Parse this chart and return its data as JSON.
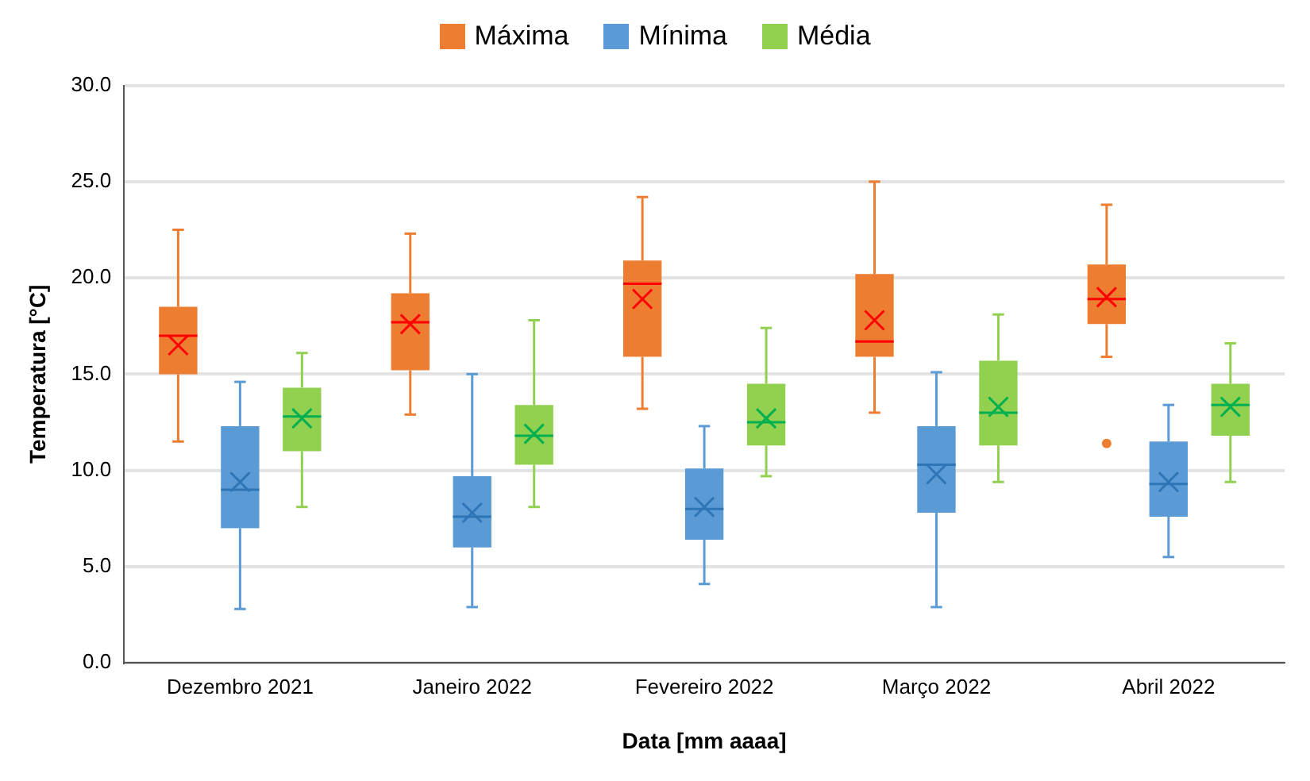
{
  "chart_data": {
    "type": "box",
    "xlabel": "Data [mm aaaa]",
    "ylabel": "Temperatura [°C]",
    "categories": [
      "Dezembro 2021",
      "Janeiro 2022",
      "Fevereiro 2022",
      "Março 2022",
      "Abril 2022"
    ],
    "series": [
      {
        "name": "Máxima",
        "color": "#ed7d31",
        "boxes": [
          {
            "low": 11.5,
            "q1": 15.0,
            "median": 17.0,
            "q3": 18.5,
            "high": 22.5,
            "mean": 16.5
          },
          {
            "low": 12.9,
            "q1": 15.2,
            "median": 17.7,
            "q3": 19.2,
            "high": 22.3,
            "mean": 17.6
          },
          {
            "low": 13.2,
            "q1": 15.9,
            "median": 19.7,
            "q3": 20.9,
            "high": 24.2,
            "mean": 18.9
          },
          {
            "low": 13.0,
            "q1": 15.9,
            "median": 16.7,
            "q3": 20.2,
            "high": 25.0,
            "mean": 17.8
          },
          {
            "low": 15.9,
            "q1": 17.6,
            "median": 18.9,
            "q3": 20.7,
            "high": 23.8,
            "mean": 19.0,
            "outliers": [
              11.4
            ]
          }
        ]
      },
      {
        "name": "Mínima",
        "color": "#5b9bd5",
        "boxes": [
          {
            "low": 2.8,
            "q1": 7.0,
            "median": 9.0,
            "q3": 12.3,
            "high": 14.6,
            "mean": 9.4
          },
          {
            "low": 2.9,
            "q1": 6.0,
            "median": 7.6,
            "q3": 9.7,
            "high": 15.0,
            "mean": 7.8
          },
          {
            "low": 4.1,
            "q1": 6.4,
            "median": 8.0,
            "q3": 10.1,
            "high": 12.3,
            "mean": 8.1
          },
          {
            "low": 2.9,
            "q1": 7.8,
            "median": 10.3,
            "q3": 12.3,
            "high": 15.1,
            "mean": 9.8
          },
          {
            "low": 5.5,
            "q1": 7.6,
            "median": 9.3,
            "q3": 11.5,
            "high": 13.4,
            "mean": 9.4
          }
        ]
      },
      {
        "name": "Média",
        "color": "#92d050",
        "boxes": [
          {
            "low": 8.1,
            "q1": 11.0,
            "median": 12.8,
            "q3": 14.3,
            "high": 16.1,
            "mean": 12.7
          },
          {
            "low": 8.1,
            "q1": 10.3,
            "median": 11.8,
            "q3": 13.4,
            "high": 17.8,
            "mean": 11.9
          },
          {
            "low": 9.7,
            "q1": 11.3,
            "median": 12.5,
            "q3": 14.5,
            "high": 17.4,
            "mean": 12.7
          },
          {
            "low": 9.4,
            "q1": 11.3,
            "median": 13.0,
            "q3": 15.7,
            "high": 18.1,
            "mean": 13.3
          },
          {
            "low": 9.4,
            "q1": 11.8,
            "median": 13.4,
            "q3": 14.5,
            "high": 16.6,
            "mean": 13.3
          }
        ]
      }
    ],
    "ylim": [
      0,
      30
    ],
    "yticks": [
      {
        "value": 0,
        "label": "0.0"
      },
      {
        "value": 5,
        "label": "5.0"
      },
      {
        "value": 10,
        "label": "10.0"
      },
      {
        "value": 15,
        "label": "15.0"
      },
      {
        "value": 20,
        "label": "20.0"
      },
      {
        "value": 25,
        "label": "25.0"
      },
      {
        "value": 30,
        "label": "30.0"
      }
    ],
    "grid": "y",
    "legend": "top"
  }
}
